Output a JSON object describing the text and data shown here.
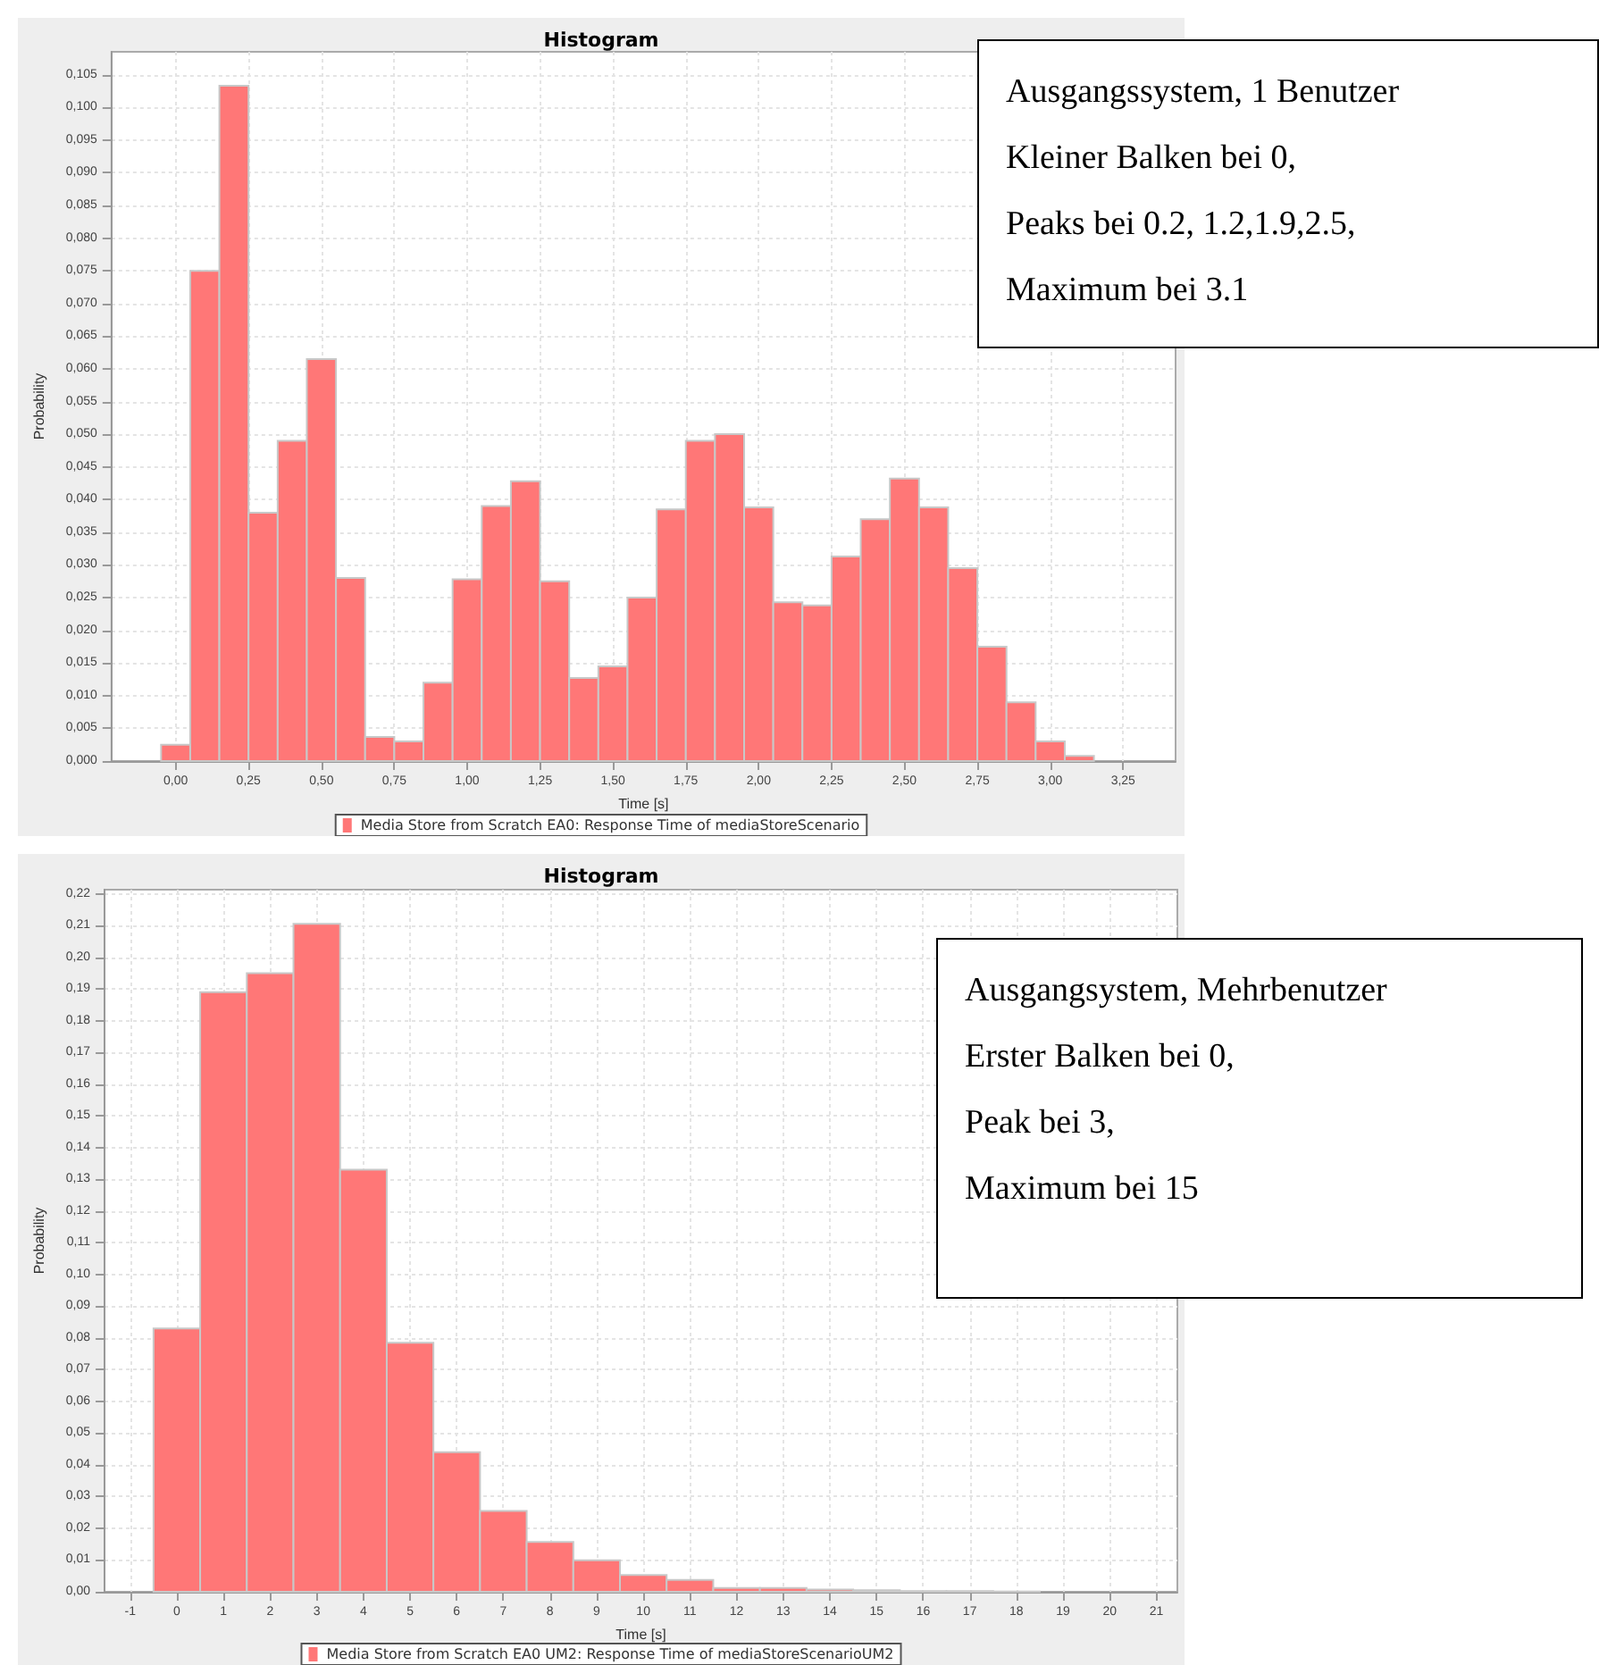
{
  "chart_data": [
    {
      "type": "histogram",
      "title": "Histogram",
      "xlabel": "Time [s]",
      "ylabel": "Probability",
      "legend": "bottom",
      "grid": true,
      "bins": [
        -0.05,
        0.05,
        0.15,
        0.25,
        0.35,
        0.45,
        0.55,
        0.65,
        0.75,
        0.85,
        0.95,
        1.05,
        1.15,
        1.25,
        1.35,
        1.45,
        1.55,
        1.65,
        1.75,
        1.85,
        1.95,
        2.05,
        2.15,
        2.25,
        2.35,
        2.45,
        2.55,
        2.65,
        2.75,
        2.85,
        2.95,
        3.05,
        3.15
      ],
      "series": [
        {
          "name": "Media Store from Scratch EA0: Response Time of mediaStoreScenario",
          "color": "#ff7777",
          "values": [
            0.0025,
            0.075,
            0.1033,
            0.038,
            0.049,
            0.0615,
            0.028,
            0.0037,
            0.003,
            0.012,
            0.0278,
            0.039,
            0.0428,
            0.0275,
            0.0127,
            0.0145,
            0.025,
            0.0385,
            0.049,
            0.05,
            0.0388,
            0.0243,
            0.0238,
            0.0313,
            0.037,
            0.0432,
            0.0388,
            0.0295,
            0.0175,
            0.009,
            0.003,
            0.0008
          ]
        }
      ],
      "xlim": [
        -0.22,
        3.43
      ],
      "xticks": [
        {
          "value": 0,
          "label": "0,00"
        },
        {
          "value": 0.25,
          "label": "0,25"
        },
        {
          "value": 0.5,
          "label": "0,50"
        },
        {
          "value": 0.75,
          "label": "0,75"
        },
        {
          "value": 1,
          "label": "1,00"
        },
        {
          "value": 1.25,
          "label": "1,25"
        },
        {
          "value": 1.5,
          "label": "1,50"
        },
        {
          "value": 1.75,
          "label": "1,75"
        },
        {
          "value": 2,
          "label": "2,00"
        },
        {
          "value": 2.25,
          "label": "2,25"
        },
        {
          "value": 2.5,
          "label": "2,50"
        },
        {
          "value": 2.75,
          "label": "2,75"
        },
        {
          "value": 3,
          "label": "3,00"
        },
        {
          "value": 3.25,
          "label": "3,25"
        }
      ],
      "ylim": [
        0,
        0.1085
      ],
      "yticks": [
        {
          "value": 0,
          "label": "0,000"
        },
        {
          "value": 0.005,
          "label": "0,005"
        },
        {
          "value": 0.01,
          "label": "0,010"
        },
        {
          "value": 0.015,
          "label": "0,015"
        },
        {
          "value": 0.02,
          "label": "0,020"
        },
        {
          "value": 0.025,
          "label": "0,025"
        },
        {
          "value": 0.03,
          "label": "0,030"
        },
        {
          "value": 0.035,
          "label": "0,035"
        },
        {
          "value": 0.04,
          "label": "0,040"
        },
        {
          "value": 0.045,
          "label": "0,045"
        },
        {
          "value": 0.05,
          "label": "0,050"
        },
        {
          "value": 0.055,
          "label": "0,055"
        },
        {
          "value": 0.06,
          "label": "0,060"
        },
        {
          "value": 0.065,
          "label": "0,065"
        },
        {
          "value": 0.07,
          "label": "0,070"
        },
        {
          "value": 0.075,
          "label": "0,075"
        },
        {
          "value": 0.08,
          "label": "0,080"
        },
        {
          "value": 0.085,
          "label": "0,085"
        },
        {
          "value": 0.09,
          "label": "0,090"
        },
        {
          "value": 0.095,
          "label": "0,095"
        },
        {
          "value": 0.1,
          "label": "0,100"
        },
        {
          "value": 0.105,
          "label": "0,105"
        }
      ],
      "annotations": [
        "Ausgangssystem, 1 Benutzer",
        "Kleiner Balken bei 0,",
        "Peaks bei 0.2, 1.2,1.9,2.5,",
        "Maximum bei 3.1"
      ]
    },
    {
      "type": "histogram",
      "title": "Histogram",
      "xlabel": "Time [s]",
      "ylabel": "Probability",
      "legend": "bottom",
      "grid": true,
      "bins": [
        -0.5,
        0.5,
        1.5,
        2.5,
        3.5,
        4.5,
        5.5,
        6.5,
        7.5,
        8.5,
        9.5,
        10.5,
        11.5,
        12.5,
        13.5,
        14.5,
        15.5,
        16.5,
        17.5,
        18.5
      ],
      "series": [
        {
          "name": "Media Store from Scratch EA0 UM2: Response Time of mediaStoreScenarioUM2",
          "color": "#ff7777",
          "values": [
            0.083,
            0.189,
            0.195,
            0.2105,
            0.133,
            0.0785,
            0.044,
            0.0255,
            0.0157,
            0.0099,
            0.0053,
            0.0037,
            0.0012,
            0.0012,
            0.0007,
            0.0005,
            0.0002,
            0.0002,
            0.0001
          ]
        }
      ],
      "xlim": [
        -1.55,
        21.45
      ],
      "xticks": [
        -1,
        0,
        1,
        2,
        3,
        4,
        5,
        6,
        7,
        8,
        9,
        10,
        11,
        12,
        13,
        14,
        15,
        16,
        17,
        18,
        19,
        20,
        21
      ],
      "ylim": [
        0,
        0.2213
      ],
      "yticks": [
        {
          "value": 0,
          "label": "0,00"
        },
        {
          "value": 0.01,
          "label": "0,01"
        },
        {
          "value": 0.02,
          "label": "0,02"
        },
        {
          "value": 0.03,
          "label": "0,03"
        },
        {
          "value": 0.04,
          "label": "0,04"
        },
        {
          "value": 0.05,
          "label": "0,05"
        },
        {
          "value": 0.06,
          "label": "0,06"
        },
        {
          "value": 0.07,
          "label": "0,07"
        },
        {
          "value": 0.08,
          "label": "0,08"
        },
        {
          "value": 0.09,
          "label": "0,09"
        },
        {
          "value": 0.1,
          "label": "0,10"
        },
        {
          "value": 0.11,
          "label": "0,11"
        },
        {
          "value": 0.12,
          "label": "0,12"
        },
        {
          "value": 0.13,
          "label": "0,13"
        },
        {
          "value": 0.14,
          "label": "0,14"
        },
        {
          "value": 0.15,
          "label": "0,15"
        },
        {
          "value": 0.16,
          "label": "0,16"
        },
        {
          "value": 0.17,
          "label": "0,17"
        },
        {
          "value": 0.18,
          "label": "0,18"
        },
        {
          "value": 0.19,
          "label": "0,19"
        },
        {
          "value": 0.2,
          "label": "0,20"
        },
        {
          "value": 0.21,
          "label": "0,21"
        },
        {
          "value": 0.22,
          "label": "0,22"
        }
      ],
      "annotations": [
        "Ausgangsystem, Mehrbenutzer",
        "Erster Balken bei 0,",
        "Peak bei 3,",
        "Maximum bei 15"
      ]
    }
  ]
}
